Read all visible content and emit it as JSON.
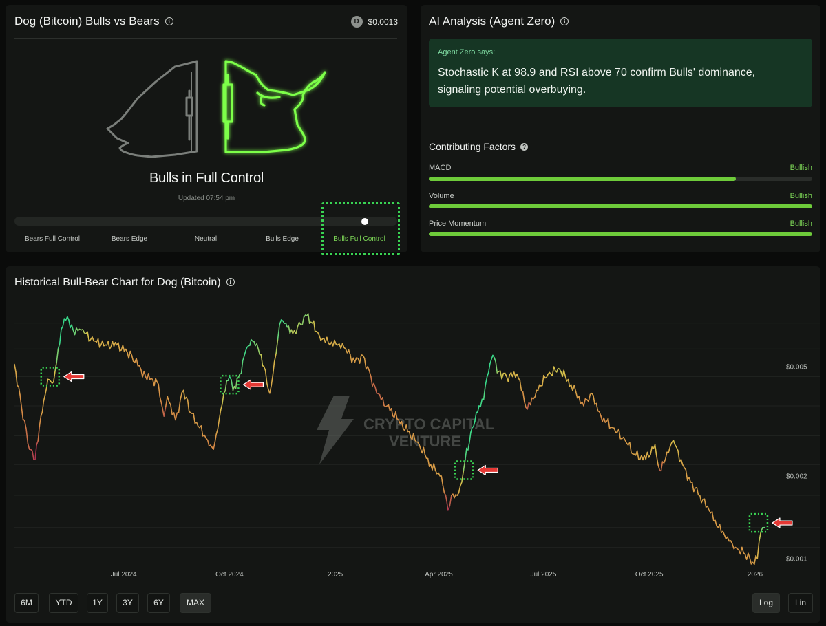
{
  "gauge_panel": {
    "title": "Dog (Bitcoin) Bulls vs Bears",
    "coin_letter": "D",
    "price": "$0.0013",
    "status": "Bulls in Full Control",
    "updated": "Updated 07:54 pm",
    "scale_labels": [
      "Bears Full Control",
      "Bears Edge",
      "Neutral",
      "Bulls Edge",
      "Bulls Full Control"
    ],
    "active_label": "Bulls Full Control",
    "gauge_position": 0.915,
    "accent_color": "#7ed957"
  },
  "ai_panel": {
    "title": "AI Analysis (Agent Zero)",
    "says_label": "Agent Zero says:",
    "says_text": "Stochastic K at 98.9 and RSI above 70 confirm Bulls' dominance, signaling potential overbuying.",
    "factors_title": "Contributing Factors",
    "factors": [
      {
        "name": "MACD",
        "value": "Bullish",
        "level": 0.8
      },
      {
        "name": "Volume",
        "value": "Bullish",
        "level": 1.0
      },
      {
        "name": "Price Momentum",
        "value": "Bullish",
        "level": 1.0
      }
    ]
  },
  "history_panel": {
    "title": "Historical Bull-Bear Chart for Dog (Bitcoin)",
    "watermark": [
      "CRYPTO CAPITAL",
      "VENTURE"
    ],
    "range_buttons": [
      "6M",
      "YTD",
      "1Y",
      "3Y",
      "6Y",
      "MAX"
    ],
    "active_range": "MAX",
    "scale_buttons": [
      "Log",
      "Lin"
    ],
    "active_scale": "Log"
  },
  "chart_data": {
    "type": "line",
    "y_scale": "log",
    "ylim": [
      0.00095,
      0.0085
    ],
    "xlim": [
      "2024-03-28",
      "2026-01-19"
    ],
    "x_ticks": [
      {
        "label": "Jul 2024",
        "date": "2024-07-01"
      },
      {
        "label": "Oct 2024",
        "date": "2024-10-01"
      },
      {
        "label": "2025",
        "date": "2025-01-01"
      },
      {
        "label": "Apr 2025",
        "date": "2025-04-01"
      },
      {
        "label": "Jul 2025",
        "date": "2025-07-01"
      },
      {
        "label": "Oct 2025",
        "date": "2025-10-01"
      },
      {
        "label": "2026",
        "date": "2026-01-01"
      }
    ],
    "y_ticks": [
      {
        "label": "$0.005",
        "value": 0.005
      },
      {
        "label": "$0.002",
        "value": 0.002
      },
      {
        "label": "$0.001",
        "value": 0.001
      }
    ],
    "color_legend": {
      "bullish": "#39d98a",
      "neutral": "#d8c14a",
      "bearish": "#a8324f"
    },
    "points": [
      {
        "x": "2024-03-28",
        "y": 0.0051,
        "s": 0.4
      },
      {
        "x": "2024-04-03",
        "y": 0.0036,
        "s": 0.2
      },
      {
        "x": "2024-04-10",
        "y": 0.0025,
        "s": 0.1
      },
      {
        "x": "2024-04-15",
        "y": 0.0023,
        "s": 0.0
      },
      {
        "x": "2024-04-20",
        "y": 0.0033,
        "s": 0.3
      },
      {
        "x": "2024-04-26",
        "y": 0.0045,
        "s": 0.5
      },
      {
        "x": "2024-05-01",
        "y": 0.0044,
        "s": 0.55
      },
      {
        "x": "2024-05-05",
        "y": 0.0058,
        "s": 0.85
      },
      {
        "x": "2024-05-09",
        "y": 0.007,
        "s": 1.0
      },
      {
        "x": "2024-05-13",
        "y": 0.0076,
        "s": 1.0
      },
      {
        "x": "2024-05-18",
        "y": 0.0068,
        "s": 0.8
      },
      {
        "x": "2024-05-25",
        "y": 0.0068,
        "s": 0.7
      },
      {
        "x": "2024-06-05",
        "y": 0.0062,
        "s": 0.4
      },
      {
        "x": "2024-06-15",
        "y": 0.006,
        "s": 0.45
      },
      {
        "x": "2024-06-25",
        "y": 0.006,
        "s": 0.4
      },
      {
        "x": "2024-07-08",
        "y": 0.0055,
        "s": 0.3
      },
      {
        "x": "2024-07-20",
        "y": 0.0046,
        "s": 0.2
      },
      {
        "x": "2024-07-30",
        "y": 0.0044,
        "s": 0.3
      },
      {
        "x": "2024-08-05",
        "y": 0.0033,
        "s": 0.1
      },
      {
        "x": "2024-08-08",
        "y": 0.0039,
        "s": 0.3
      },
      {
        "x": "2024-08-15",
        "y": 0.0032,
        "s": 0.2
      },
      {
        "x": "2024-08-22",
        "y": 0.0041,
        "s": 0.4
      },
      {
        "x": "2024-08-28",
        "y": 0.0034,
        "s": 0.3
      },
      {
        "x": "2024-09-05",
        "y": 0.003,
        "s": 0.3
      },
      {
        "x": "2024-09-12",
        "y": 0.0027,
        "s": 0.2
      },
      {
        "x": "2024-09-17",
        "y": 0.0025,
        "s": 0.2
      },
      {
        "x": "2024-09-22",
        "y": 0.0032,
        "s": 0.45
      },
      {
        "x": "2024-09-26",
        "y": 0.004,
        "s": 0.65
      },
      {
        "x": "2024-10-01",
        "y": 0.0046,
        "s": 0.9
      },
      {
        "x": "2024-10-04",
        "y": 0.0041,
        "s": 0.7
      },
      {
        "x": "2024-10-10",
        "y": 0.0047,
        "s": 0.8
      },
      {
        "x": "2024-10-15",
        "y": 0.0057,
        "s": 0.9
      },
      {
        "x": "2024-10-21",
        "y": 0.0062,
        "s": 0.8
      },
      {
        "x": "2024-10-26",
        "y": 0.0058,
        "s": 0.7
      },
      {
        "x": "2024-10-31",
        "y": 0.005,
        "s": 0.5
      },
      {
        "x": "2024-11-05",
        "y": 0.004,
        "s": 0.35
      },
      {
        "x": "2024-11-09",
        "y": 0.0052,
        "s": 0.5
      },
      {
        "x": "2024-11-12",
        "y": 0.0063,
        "s": 0.8
      },
      {
        "x": "2024-11-15",
        "y": 0.0074,
        "s": 0.9
      },
      {
        "x": "2024-11-19",
        "y": 0.0072,
        "s": 0.8
      },
      {
        "x": "2024-11-25",
        "y": 0.0066,
        "s": 0.6
      },
      {
        "x": "2024-12-02",
        "y": 0.0071,
        "s": 0.7
      },
      {
        "x": "2024-12-06",
        "y": 0.0077,
        "s": 0.75
      },
      {
        "x": "2024-12-12",
        "y": 0.0072,
        "s": 0.6
      },
      {
        "x": "2024-12-18",
        "y": 0.0065,
        "s": 0.45
      },
      {
        "x": "2024-12-26",
        "y": 0.0061,
        "s": 0.4
      },
      {
        "x": "2025-01-03",
        "y": 0.006,
        "s": 0.45
      },
      {
        "x": "2025-01-10",
        "y": 0.0058,
        "s": 0.35
      },
      {
        "x": "2025-01-18",
        "y": 0.0052,
        "s": 0.3
      },
      {
        "x": "2025-01-25",
        "y": 0.0055,
        "s": 0.35
      },
      {
        "x": "2025-02-01",
        "y": 0.0046,
        "s": 0.15
      },
      {
        "x": "2025-02-06",
        "y": 0.004,
        "s": 0.1
      },
      {
        "x": "2025-02-15",
        "y": 0.0036,
        "s": 0.2
      },
      {
        "x": "2025-02-25",
        "y": 0.0032,
        "s": 0.25
      },
      {
        "x": "2025-03-05",
        "y": 0.0029,
        "s": 0.3
      },
      {
        "x": "2025-03-15",
        "y": 0.0026,
        "s": 0.3
      },
      {
        "x": "2025-03-25",
        "y": 0.0022,
        "s": 0.3
      },
      {
        "x": "2025-04-02",
        "y": 0.002,
        "s": 0.35
      },
      {
        "x": "2025-04-07",
        "y": 0.0017,
        "s": 0.1
      },
      {
        "x": "2025-04-09",
        "y": 0.0015,
        "s": 0.0
      },
      {
        "x": "2025-04-12",
        "y": 0.0017,
        "s": 0.2
      },
      {
        "x": "2025-04-17",
        "y": 0.0017,
        "s": 0.35
      },
      {
        "x": "2025-04-21",
        "y": 0.0019,
        "s": 0.6
      },
      {
        "x": "2025-04-24",
        "y": 0.0023,
        "s": 0.85
      },
      {
        "x": "2025-04-30",
        "y": 0.003,
        "s": 0.9
      },
      {
        "x": "2025-05-06",
        "y": 0.0036,
        "s": 0.9
      },
      {
        "x": "2025-05-10",
        "y": 0.0038,
        "s": 0.85
      },
      {
        "x": "2025-05-13",
        "y": 0.0046,
        "s": 0.95
      },
      {
        "x": "2025-05-18",
        "y": 0.0055,
        "s": 0.9
      },
      {
        "x": "2025-05-23",
        "y": 0.0048,
        "s": 0.6
      },
      {
        "x": "2025-05-30",
        "y": 0.0046,
        "s": 0.5
      },
      {
        "x": "2025-06-08",
        "y": 0.0047,
        "s": 0.45
      },
      {
        "x": "2025-06-17",
        "y": 0.0035,
        "s": 0.1
      },
      {
        "x": "2025-06-25",
        "y": 0.0041,
        "s": 0.35
      },
      {
        "x": "2025-07-05",
        "y": 0.0047,
        "s": 0.5
      },
      {
        "x": "2025-07-15",
        "y": 0.0049,
        "s": 0.6
      },
      {
        "x": "2025-07-25",
        "y": 0.0043,
        "s": 0.4
      },
      {
        "x": "2025-08-05",
        "y": 0.0036,
        "s": 0.2
      },
      {
        "x": "2025-08-12",
        "y": 0.004,
        "s": 0.35
      },
      {
        "x": "2025-08-20",
        "y": 0.0033,
        "s": 0.2
      },
      {
        "x": "2025-08-30",
        "y": 0.003,
        "s": 0.3
      },
      {
        "x": "2025-09-10",
        "y": 0.0027,
        "s": 0.3
      },
      {
        "x": "2025-09-18",
        "y": 0.0024,
        "s": 0.35
      },
      {
        "x": "2025-09-28",
        "y": 0.0023,
        "s": 0.4
      },
      {
        "x": "2025-10-06",
        "y": 0.0026,
        "s": 0.5
      },
      {
        "x": "2025-10-10",
        "y": 0.0021,
        "s": 0.1
      },
      {
        "x": "2025-10-15",
        "y": 0.0023,
        "s": 0.3
      },
      {
        "x": "2025-10-22",
        "y": 0.0027,
        "s": 0.55
      },
      {
        "x": "2025-10-30",
        "y": 0.0022,
        "s": 0.35
      },
      {
        "x": "2025-11-06",
        "y": 0.0019,
        "s": 0.3
      },
      {
        "x": "2025-11-14",
        "y": 0.0017,
        "s": 0.35
      },
      {
        "x": "2025-11-22",
        "y": 0.0015,
        "s": 0.3
      },
      {
        "x": "2025-11-30",
        "y": 0.0013,
        "s": 0.3
      },
      {
        "x": "2025-12-08",
        "y": 0.0012,
        "s": 0.3
      },
      {
        "x": "2025-12-15",
        "y": 0.0011,
        "s": 0.25
      },
      {
        "x": "2025-12-22",
        "y": 0.00105,
        "s": 0.3
      },
      {
        "x": "2025-12-30",
        "y": 0.00097,
        "s": 0.3
      },
      {
        "x": "2026-01-03",
        "y": 0.001,
        "s": 0.45
      },
      {
        "x": "2026-01-06",
        "y": 0.00125,
        "s": 0.75
      },
      {
        "x": "2026-01-09",
        "y": 0.0013,
        "s": 0.85
      }
    ],
    "annotations": [
      {
        "date": "2024-04-28",
        "value": 0.0046
      },
      {
        "date": "2024-10-01",
        "value": 0.0043
      },
      {
        "date": "2025-04-23",
        "value": 0.0021
      },
      {
        "date": "2026-01-04",
        "value": 0.00135
      }
    ]
  }
}
